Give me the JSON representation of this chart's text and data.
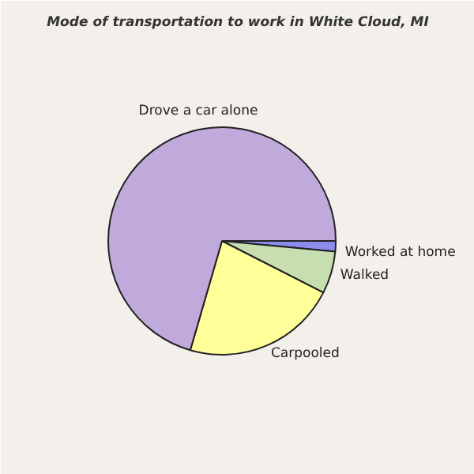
{
  "chart_data": {
    "type": "pie",
    "title": "Mode of transportation to work in White Cloud, MI",
    "categories": [
      "Worked at home",
      "Walked",
      "Carpooled",
      "Drove a car alone"
    ],
    "values": [
      1.5,
      6,
      22,
      70.5
    ],
    "colors": [
      "#8c8cf0",
      "#c6deb0",
      "#ffff99",
      "#bfaadb"
    ]
  }
}
